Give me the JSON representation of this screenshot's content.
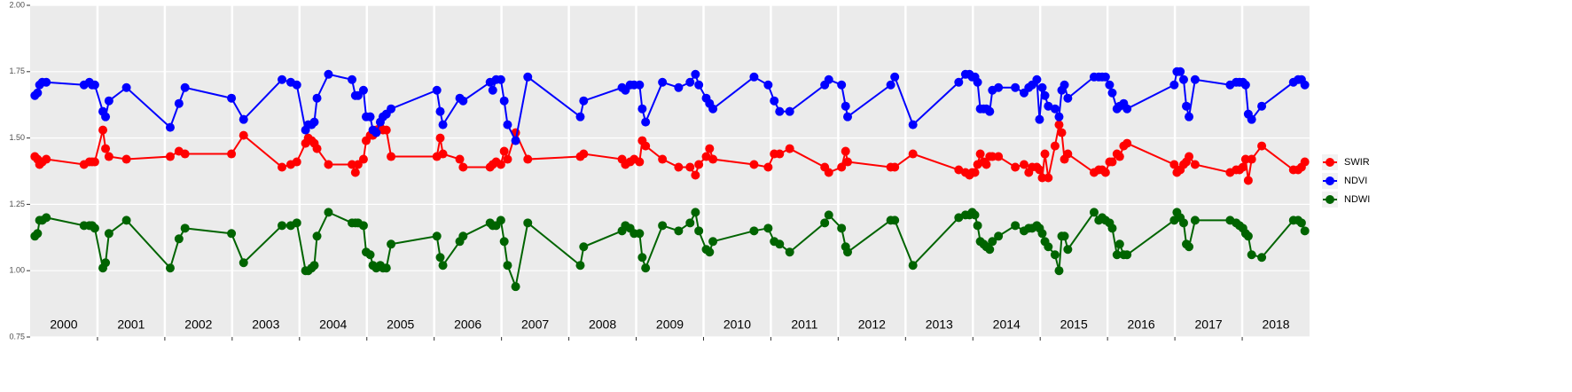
{
  "chart_data": {
    "type": "line",
    "x": [
      2000.07,
      2000.11,
      2000.14,
      2000.18,
      2000.24,
      2000.8,
      2000.88,
      2000.92,
      2000.96,
      2001.08,
      2001.12,
      2001.17,
      2001.43,
      2002.08,
      2002.21,
      2002.3,
      2002.99,
      2003.17,
      2003.74,
      2003.87,
      2003.96,
      2004.09,
      2004.13,
      2004.18,
      2004.22,
      2004.26,
      2004.43,
      2004.78,
      2004.83,
      2004.87,
      2004.95,
      2004.99,
      2005.05,
      2005.09,
      2005.14,
      2005.2,
      2005.24,
      2005.29,
      2005.36,
      2006.04,
      2006.09,
      2006.13,
      2006.38,
      2006.43,
      2006.83,
      2006.87,
      2006.92,
      2006.99,
      2007.04,
      2007.09,
      2007.21,
      2007.39,
      2008.17,
      2008.22,
      2008.79,
      2008.84,
      2008.91,
      2008.97,
      2009.05,
      2009.09,
      2009.14,
      2009.39,
      2009.63,
      2009.8,
      2009.88,
      2009.93,
      2010.04,
      2010.09,
      2010.14,
      2010.75,
      2010.96,
      2011.05,
      2011.13,
      2011.28,
      2011.8,
      2011.86,
      2012.05,
      2012.11,
      2012.14,
      2012.78,
      2012.84,
      2013.11,
      2013.79,
      2013.89,
      2013.95,
      2013.99,
      2014.03,
      2014.07,
      2014.11,
      2014.16,
      2014.2,
      2014.25,
      2014.29,
      2014.38,
      2014.63,
      2014.76,
      2014.83,
      2014.88,
      2014.95,
      2014.99,
      2015.03,
      2015.07,
      2015.12,
      2015.22,
      2015.28,
      2015.32,
      2015.36,
      2015.41,
      2015.8,
      2015.87,
      2015.92,
      2015.97,
      2016.03,
      2016.07,
      2016.14,
      2016.18,
      2016.24,
      2016.29,
      2016.99,
      2017.03,
      2017.08,
      2017.13,
      2017.17,
      2017.21,
      2017.3,
      2017.82,
      2017.91,
      2017.96,
      2018.01,
      2018.05,
      2018.09,
      2018.14,
      2018.29,
      2018.76,
      2018.83,
      2018.88,
      2018.93
    ],
    "series": [
      {
        "name": "SWIR",
        "color": "#ff0000",
        "values": [
          1.43,
          1.42,
          1.4,
          1.41,
          1.42,
          1.4,
          1.41,
          1.41,
          1.41,
          1.53,
          1.46,
          1.43,
          1.42,
          1.43,
          1.45,
          1.44,
          1.44,
          1.51,
          1.39,
          1.4,
          1.41,
          1.48,
          1.5,
          1.49,
          1.48,
          1.46,
          1.4,
          1.4,
          1.37,
          1.4,
          1.42,
          1.49,
          1.51,
          1.51,
          1.53,
          1.54,
          1.53,
          1.53,
          1.43,
          1.43,
          1.5,
          1.44,
          1.42,
          1.39,
          1.39,
          1.4,
          1.41,
          1.4,
          1.45,
          1.42,
          1.52,
          1.42,
          1.43,
          1.44,
          1.42,
          1.4,
          1.41,
          1.42,
          1.41,
          1.49,
          1.47,
          1.42,
          1.39,
          1.39,
          1.36,
          1.4,
          1.43,
          1.46,
          1.42,
          1.4,
          1.39,
          1.44,
          1.44,
          1.46,
          1.39,
          1.37,
          1.39,
          1.45,
          1.41,
          1.39,
          1.39,
          1.44,
          1.38,
          1.37,
          1.36,
          1.37,
          1.37,
          1.4,
          1.44,
          1.41,
          1.4,
          1.43,
          1.43,
          1.43,
          1.39,
          1.4,
          1.37,
          1.39,
          1.39,
          1.38,
          1.35,
          1.44,
          1.35,
          1.47,
          1.55,
          1.52,
          1.42,
          1.44,
          1.37,
          1.38,
          1.38,
          1.37,
          1.41,
          1.41,
          1.44,
          1.43,
          1.47,
          1.48,
          1.4,
          1.37,
          1.38,
          1.4,
          1.41,
          1.43,
          1.4,
          1.37,
          1.38,
          1.38,
          1.39,
          1.42,
          1.34,
          1.42,
          1.47,
          1.38,
          1.38,
          1.39,
          1.41
        ]
      },
      {
        "name": "NDVI",
        "color": "#0000ff",
        "values": [
          1.66,
          1.67,
          1.7,
          1.71,
          1.71,
          1.7,
          1.71,
          1.7,
          1.7,
          1.6,
          1.58,
          1.64,
          1.69,
          1.54,
          1.63,
          1.69,
          1.65,
          1.57,
          1.72,
          1.71,
          1.7,
          1.53,
          1.55,
          1.55,
          1.56,
          1.65,
          1.74,
          1.72,
          1.66,
          1.66,
          1.68,
          1.58,
          1.58,
          1.53,
          1.52,
          1.56,
          1.58,
          1.59,
          1.61,
          1.68,
          1.6,
          1.55,
          1.65,
          1.64,
          1.71,
          1.68,
          1.72,
          1.72,
          1.64,
          1.55,
          1.49,
          1.73,
          1.58,
          1.64,
          1.69,
          1.68,
          1.7,
          1.7,
          1.7,
          1.61,
          1.56,
          1.71,
          1.69,
          1.71,
          1.74,
          1.7,
          1.65,
          1.63,
          1.61,
          1.73,
          1.7,
          1.64,
          1.6,
          1.6,
          1.7,
          1.72,
          1.7,
          1.62,
          1.58,
          1.7,
          1.73,
          1.55,
          1.71,
          1.74,
          1.74,
          1.73,
          1.73,
          1.71,
          1.61,
          1.61,
          1.61,
          1.6,
          1.68,
          1.69,
          1.69,
          1.67,
          1.69,
          1.7,
          1.72,
          1.57,
          1.69,
          1.66,
          1.62,
          1.61,
          1.58,
          1.68,
          1.7,
          1.65,
          1.73,
          1.73,
          1.73,
          1.73,
          1.7,
          1.67,
          1.61,
          1.62,
          1.63,
          1.61,
          1.7,
          1.75,
          1.75,
          1.72,
          1.62,
          1.58,
          1.72,
          1.7,
          1.71,
          1.71,
          1.71,
          1.7,
          1.59,
          1.57,
          1.62,
          1.71,
          1.72,
          1.72,
          1.7
        ]
      },
      {
        "name": "NDWI",
        "color": "#006400",
        "values": [
          1.13,
          1.14,
          1.19,
          1.19,
          1.2,
          1.17,
          1.17,
          1.17,
          1.16,
          1.01,
          1.03,
          1.14,
          1.19,
          1.01,
          1.12,
          1.16,
          1.14,
          1.03,
          1.17,
          1.17,
          1.18,
          1.0,
          1.0,
          1.01,
          1.02,
          1.13,
          1.22,
          1.18,
          1.18,
          1.18,
          1.17,
          1.07,
          1.06,
          1.02,
          1.01,
          1.02,
          1.01,
          1.01,
          1.1,
          1.13,
          1.05,
          1.02,
          1.11,
          1.13,
          1.18,
          1.17,
          1.17,
          1.19,
          1.11,
          1.02,
          0.94,
          1.18,
          1.02,
          1.09,
          1.15,
          1.17,
          1.16,
          1.14,
          1.14,
          1.05,
          1.01,
          1.17,
          1.15,
          1.18,
          1.22,
          1.15,
          1.08,
          1.07,
          1.11,
          1.15,
          1.16,
          1.11,
          1.1,
          1.07,
          1.18,
          1.21,
          1.16,
          1.09,
          1.07,
          1.19,
          1.19,
          1.02,
          1.2,
          1.21,
          1.21,
          1.22,
          1.21,
          1.17,
          1.11,
          1.1,
          1.09,
          1.08,
          1.11,
          1.13,
          1.17,
          1.15,
          1.16,
          1.16,
          1.17,
          1.16,
          1.14,
          1.11,
          1.09,
          1.06,
          1.0,
          1.13,
          1.13,
          1.08,
          1.22,
          1.19,
          1.2,
          1.19,
          1.18,
          1.16,
          1.06,
          1.1,
          1.06,
          1.06,
          1.19,
          1.22,
          1.2,
          1.18,
          1.1,
          1.09,
          1.19,
          1.19,
          1.18,
          1.17,
          1.16,
          1.14,
          1.13,
          1.06,
          1.05,
          1.19,
          1.19,
          1.18,
          1.15
        ]
      }
    ],
    "xlim": [
      2000,
      2019
    ],
    "xticks": [
      2001,
      2002,
      2003,
      2004,
      2005,
      2006,
      2007,
      2008,
      2009,
      2010,
      2011,
      2012,
      2013,
      2014,
      2015,
      2016,
      2017,
      2018
    ],
    "year_labels": [
      "2000",
      "2001",
      "2002",
      "2003",
      "2004",
      "2005",
      "2006",
      "2007",
      "2008",
      "2009",
      "2010",
      "2011",
      "2012",
      "2013",
      "2014",
      "2015",
      "2016",
      "2017",
      "2018"
    ],
    "ylim": [
      0.75,
      2.0
    ],
    "yticks": [
      {
        "value": 0.75,
        "label": "0.75"
      },
      {
        "value": 1,
        "label": "1.00"
      },
      {
        "value": 1.25,
        "label": "1.25"
      },
      {
        "value": 1.5,
        "label": "1.50"
      },
      {
        "value": 1.75,
        "label": "1.75"
      },
      {
        "value": 2,
        "label": "2.00"
      }
    ],
    "grid": true,
    "legend": "right"
  }
}
